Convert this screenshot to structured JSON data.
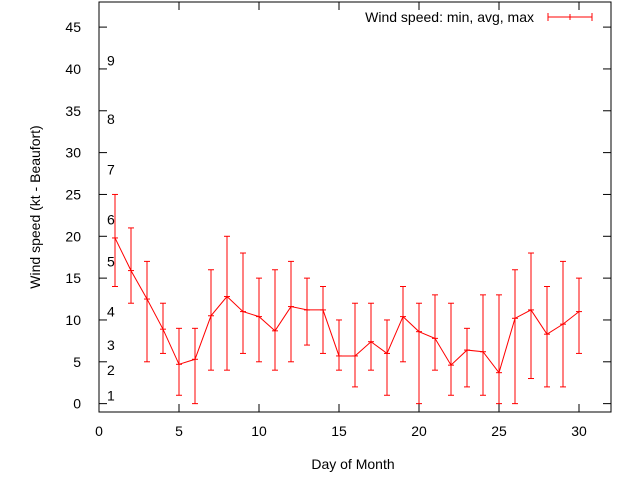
{
  "chart_data": {
    "type": "line",
    "xlabel": "Day of Month",
    "ylabel": "Wind speed (kt - Beaufort)",
    "xlim": [
      0,
      32
    ],
    "ylim": [
      -1,
      48
    ],
    "xticks": [
      0,
      5,
      10,
      15,
      20,
      25,
      30
    ],
    "yticks": [
      0,
      5,
      10,
      15,
      20,
      25,
      30,
      35,
      40,
      45
    ],
    "grid": false,
    "legend_position": "top-right",
    "beaufort_labels": [
      {
        "label": "1",
        "value": 1
      },
      {
        "label": "2",
        "value": 4
      },
      {
        "label": "3",
        "value": 7
      },
      {
        "label": "4",
        "value": 11
      },
      {
        "label": "5",
        "value": 17
      },
      {
        "label": "6",
        "value": 22
      },
      {
        "label": "7",
        "value": 28
      },
      {
        "label": "8",
        "value": 34
      },
      {
        "label": "9",
        "value": 41
      }
    ],
    "series": [
      {
        "name": "Wind speed: min, avg, max",
        "color": "#ff0000",
        "x": [
          1,
          2,
          3,
          4,
          5,
          6,
          7,
          8,
          9,
          10,
          11,
          12,
          13,
          14,
          15,
          16,
          17,
          18,
          19,
          20,
          21,
          22,
          23,
          24,
          25,
          26,
          27,
          28,
          29,
          30
        ],
        "avg": [
          19.8,
          15.9,
          12.5,
          8.9,
          4.7,
          5.3,
          10.5,
          12.8,
          11.0,
          10.4,
          8.7,
          11.6,
          11.2,
          11.2,
          5.7,
          5.7,
          7.4,
          6.0,
          10.4,
          8.6,
          7.8,
          4.6,
          6.4,
          6.2,
          3.7,
          10.2,
          11.2,
          8.3,
          9.5,
          11.0
        ],
        "min": [
          14,
          12,
          5,
          6,
          1,
          0,
          4,
          4,
          6,
          5,
          4,
          5,
          7,
          6,
          4,
          2,
          4,
          1,
          5,
          0,
          4,
          1,
          2,
          1,
          0,
          0,
          3,
          2,
          2,
          6
        ],
        "max": [
          25,
          21,
          17,
          12,
          9,
          9,
          16,
          20,
          18,
          15,
          16,
          17,
          15,
          14,
          10,
          12,
          12,
          10,
          14,
          12,
          13,
          12,
          9,
          13,
          13,
          16,
          18,
          14,
          17,
          15
        ]
      }
    ]
  }
}
